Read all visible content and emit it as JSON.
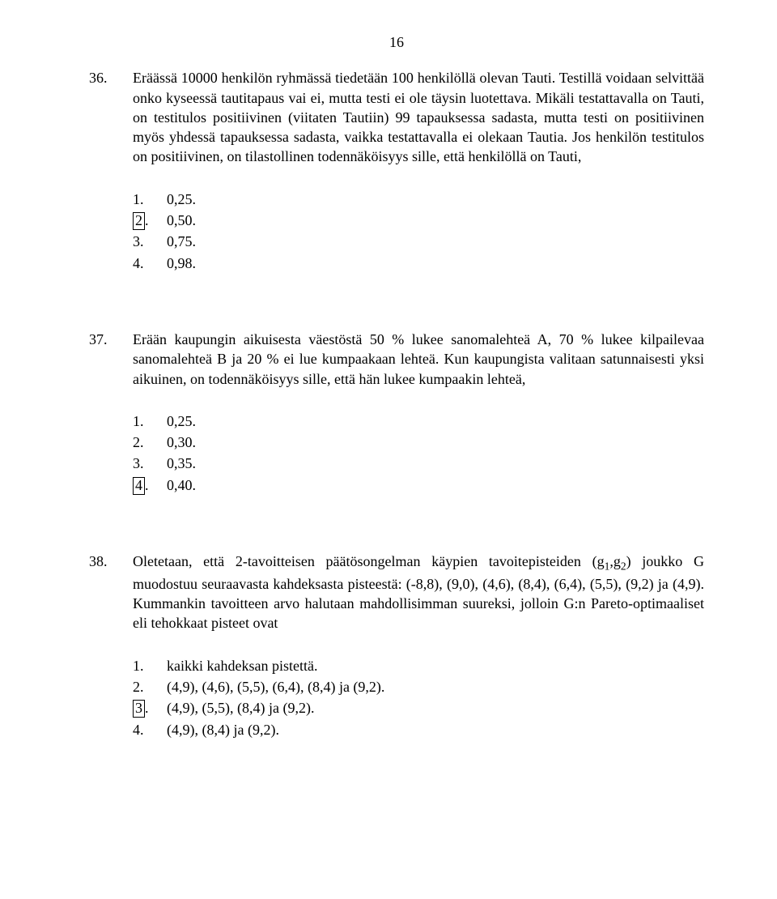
{
  "page_number": "16",
  "questions": [
    {
      "number": "36.",
      "text": "Eräässä 10000 henkilön ryhmässä tiedetään 100 henkilöllä olevan Tauti. Testillä voidaan selvittää onko kyseessä tautitapaus vai ei, mutta testi ei ole täysin luotettava. Mikäli testattavalla on Tauti, on testitulos positiivinen (viitaten Tautiin) 99 tapauksessa sadasta, mutta testi on positiivinen myös yhdessä tapauksessa sadasta, vaikka testattavalla ei olekaan Tautia. Jos henkilön testitulos on positiivinen, on tilastollinen todennäköisyys sille, että henkilöllä on Tauti,",
      "options": [
        {
          "num": "1",
          "dot": ".",
          "text": "0,25.",
          "boxed": false
        },
        {
          "num": "2",
          "dot": ".",
          "text": "0,50.",
          "boxed": true
        },
        {
          "num": "3",
          "dot": ".",
          "text": "0,75.",
          "boxed": false
        },
        {
          "num": "4",
          "dot": ".",
          "text": "0,98.",
          "boxed": false
        }
      ]
    },
    {
      "number": "37.",
      "text": "Erään kaupungin aikuisesta väestöstä 50 % lukee sanomalehteä A, 70 % lukee kilpailevaa sanomalehteä B ja 20 % ei lue kumpaakaan lehteä. Kun kaupungista valitaan satunnaisesti yksi aikuinen, on todennäköisyys sille, että hän lukee kumpaakin lehteä,",
      "options": [
        {
          "num": "1",
          "dot": ".",
          "text": "0,25.",
          "boxed": false
        },
        {
          "num": "2",
          "dot": ".",
          "text": "0,30.",
          "boxed": false
        },
        {
          "num": "3",
          "dot": ".",
          "text": "0,35.",
          "boxed": false
        },
        {
          "num": "4",
          "dot": ".",
          "text": "0,40.",
          "boxed": true
        }
      ]
    },
    {
      "number": "38.",
      "text_html": "Oletetaan, että 2-tavoitteisen päätösongelman käypien tavoitepisteiden (g<sub>1</sub>,g<sub>2</sub>) joukko G muodostuu seuraavasta kahdeksasta pisteestä: (-8,8), (9,0), (4,6), (8,4), (6,4), (5,5), (9,2) ja (4,9). Kummankin tavoitteen arvo halutaan mahdollisimman suureksi, jolloin G:n Pareto-optimaaliset eli tehokkaat pisteet ovat",
      "options": [
        {
          "num": "1",
          "dot": ".",
          "text": "kaikki kahdeksan pistettä.",
          "boxed": false
        },
        {
          "num": "2",
          "dot": ".",
          "text": "(4,9), (4,6), (5,5), (6,4), (8,4) ja (9,2).",
          "boxed": false
        },
        {
          "num": "3",
          "dot": ".",
          "text": "(4,9), (5,5), (8,4) ja (9,2).",
          "boxed": true
        },
        {
          "num": "4",
          "dot": ".",
          "text": "(4,9), (8,4) ja (9,2).",
          "boxed": false
        }
      ]
    }
  ]
}
